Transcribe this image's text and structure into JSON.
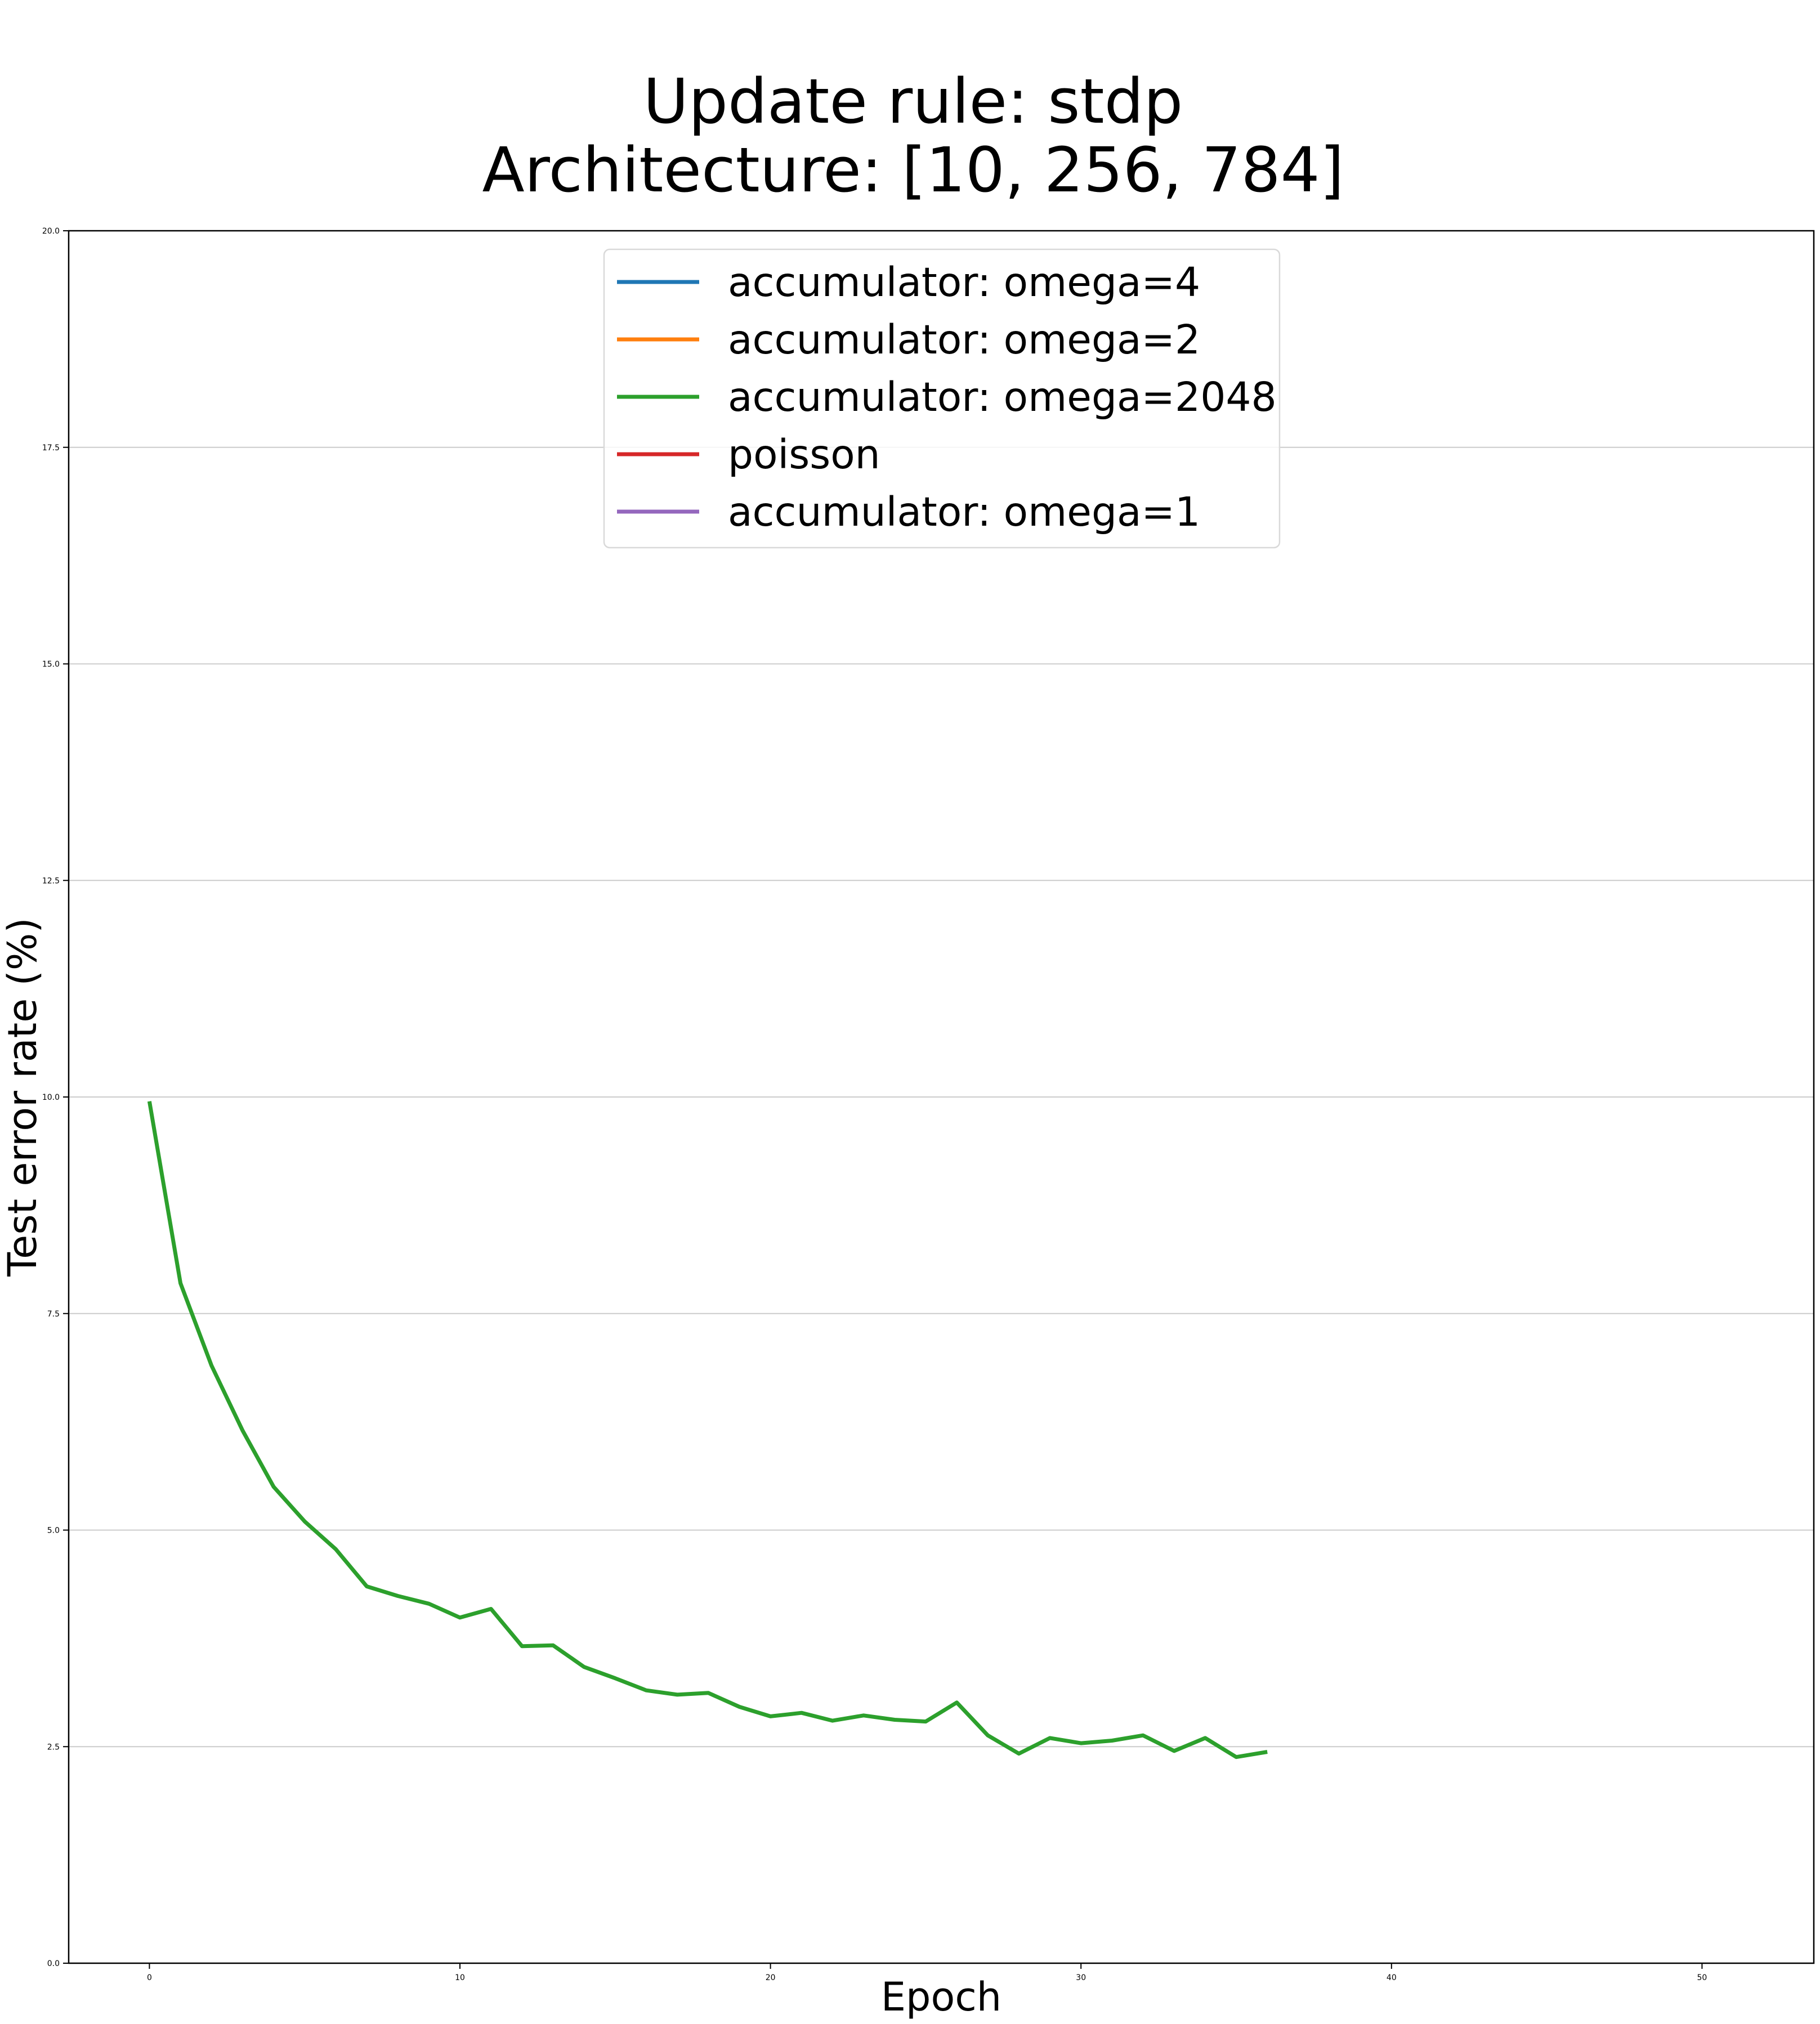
{
  "chart_data": {
    "type": "line",
    "title": "Update rule: stdp",
    "subtitle": "Architecture: [10, 256, 784]",
    "xlabel": "Epoch",
    "ylabel": "Test error rate (%)",
    "xlim": [
      -2.6,
      53.6
    ],
    "ylim": [
      0,
      20
    ],
    "xticks": [
      0,
      10,
      20,
      30,
      40,
      50
    ],
    "xtick_labels": [
      "0",
      "10",
      "20",
      "30",
      "40",
      "50"
    ],
    "yticks": [
      0,
      2.5,
      5,
      7.5,
      10,
      12.5,
      15,
      17.5,
      20
    ],
    "ytick_labels": [
      "0.0",
      "2.5",
      "5.0",
      "7.5",
      "10.0",
      "12.5",
      "15.0",
      "17.5",
      "20.0"
    ],
    "grid": "horizontal",
    "legend_position": "upper center",
    "series": [
      {
        "name": "accumulator: omega=4",
        "color": "#1f77b4",
        "x": [],
        "y": []
      },
      {
        "name": "accumulator: omega=2",
        "color": "#ff7f0e",
        "x": [],
        "y": []
      },
      {
        "name": "accumulator: omega=2048",
        "color": "#2ca02c",
        "x": [
          0,
          1,
          2,
          3,
          4,
          5,
          6,
          7,
          8,
          9,
          10,
          11,
          12,
          13,
          14,
          15,
          16,
          17,
          18,
          19,
          20,
          21,
          22,
          23,
          24,
          25,
          26,
          27,
          28,
          29,
          30,
          31,
          32,
          33,
          34,
          35,
          36
        ],
        "y": [
          9.95,
          7.85,
          6.9,
          6.15,
          5.5,
          5.1,
          4.78,
          4.35,
          4.24,
          4.15,
          3.99,
          4.09,
          3.66,
          3.67,
          3.42,
          3.29,
          3.15,
          3.1,
          3.12,
          2.96,
          2.85,
          2.89,
          2.8,
          2.86,
          2.81,
          2.79,
          3.01,
          2.63,
          2.42,
          2.6,
          2.54,
          2.57,
          2.63,
          2.45,
          2.6,
          2.38,
          2.44
        ]
      },
      {
        "name": "poisson",
        "color": "#d62728",
        "x": [],
        "y": []
      },
      {
        "name": "accumulator: omega=1",
        "color": "#9467bd",
        "x": [],
        "y": []
      }
    ]
  }
}
